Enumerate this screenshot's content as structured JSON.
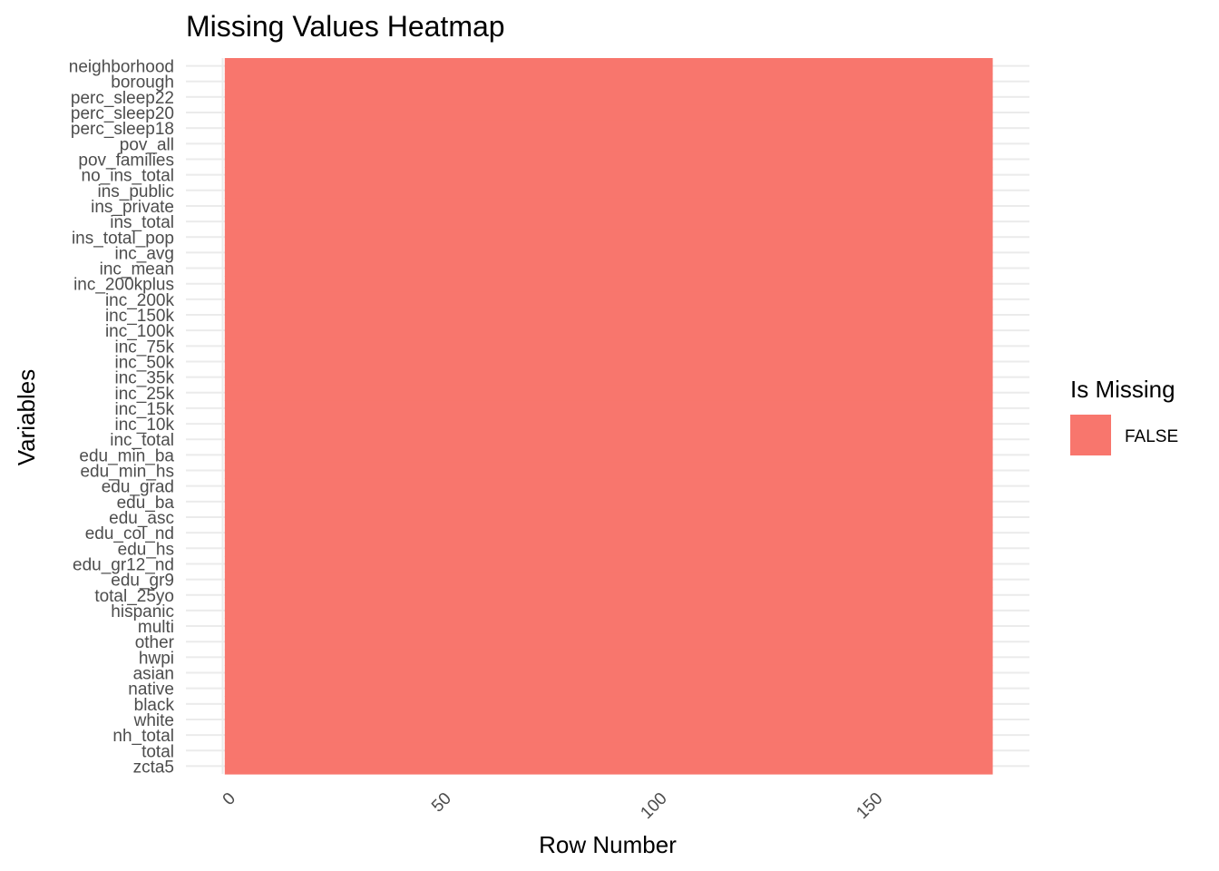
{
  "chart_data": {
    "type": "heatmap",
    "title": "Missing Values Heatmap",
    "xlabel": "Row Number",
    "ylabel": "Variables",
    "x_ticks": [
      0,
      50,
      100,
      150
    ],
    "xlim": [
      0,
      187
    ],
    "rows": 178,
    "variables": [
      "neighborhood",
      "borough",
      "perc_sleep22",
      "perc_sleep20",
      "perc_sleep18",
      "pov_all",
      "pov_families",
      "no_ins_total",
      "ins_public",
      "ins_private",
      "ins_total",
      "ins_total_pop",
      "inc_avg",
      "inc_mean",
      "inc_200kplus",
      "inc_200k",
      "inc_150k",
      "inc_100k",
      "inc_75k",
      "inc_50k",
      "inc_35k",
      "inc_25k",
      "inc_15k",
      "inc_10k",
      "inc_total",
      "edu_min_ba",
      "edu_min_hs",
      "edu_grad",
      "edu_ba",
      "edu_asc",
      "edu_col_nd",
      "edu_hs",
      "edu_gr12_nd",
      "edu_gr9",
      "total_25yo",
      "hispanic",
      "multi",
      "other",
      "hwpi",
      "asian",
      "native",
      "black",
      "white",
      "nh_total",
      "total",
      "zcta5"
    ],
    "legend": {
      "title": "Is Missing",
      "entries": [
        {
          "label": "FALSE",
          "color": "#F8766D"
        }
      ],
      "position": "right"
    },
    "fill_color": "#F8766D",
    "grid": true,
    "grid_color": "#EBEBEB"
  }
}
